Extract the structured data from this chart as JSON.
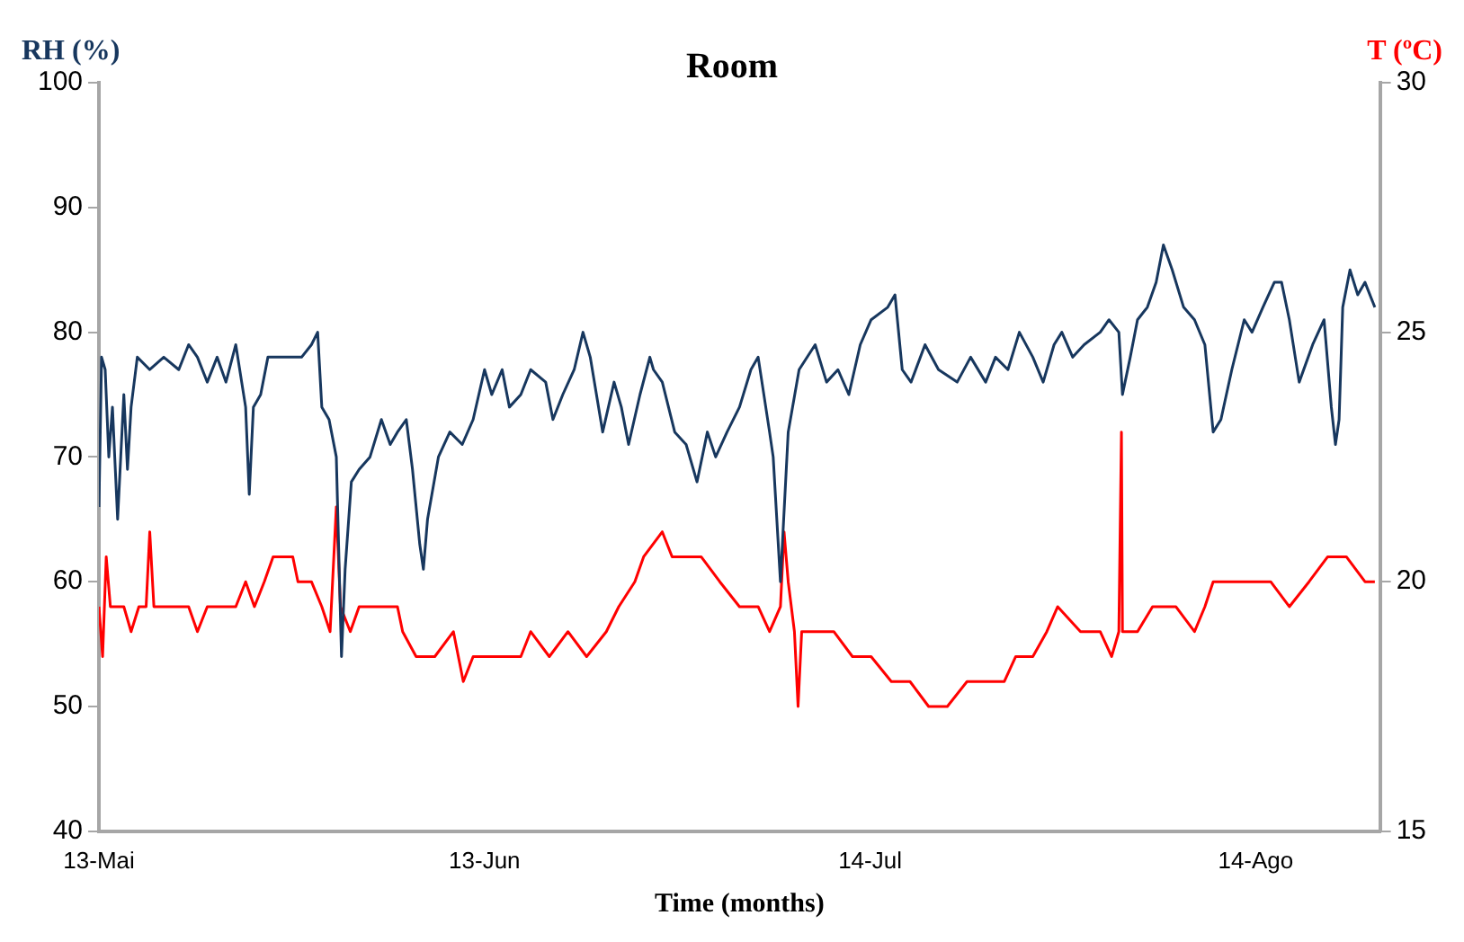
{
  "chart_data": {
    "type": "line",
    "title": "Room",
    "xlabel": "Time (months)",
    "ylabel": "RH (%)",
    "y2label": "T (ºC)",
    "xlim": [
      "--05-13",
      "--08-24"
    ],
    "xticks": [
      {
        "value": "--05-13",
        "label": "13-Mai"
      },
      {
        "value": "--06-13",
        "label": "13-Jun"
      },
      {
        "value": "--07-14",
        "label": "14-Jul"
      },
      {
        "value": "--08-14",
        "label": "14-Ago"
      }
    ],
    "ylim": [
      40,
      100
    ],
    "yticks": [
      40,
      50,
      60,
      70,
      80,
      90,
      100
    ],
    "y2lim": [
      15,
      30
    ],
    "y2ticks": [
      15,
      20,
      25,
      30
    ],
    "grid": false,
    "legend": false,
    "marker": "none",
    "line_style": "solid",
    "series": [
      {
        "color": "#17375e",
        "x": [
          "--05-13T00:00",
          "--05-13T05:00",
          "--05-13T12:00",
          "--05-13T19:00",
          "--05-14T02:00",
          "--05-14T12:00",
          "--05-15T00:00",
          "--05-15T07:00",
          "--05-15T14:00",
          "--05-16T02:00",
          "--05-17T02:00",
          "--05-18T05:00",
          "--05-19T10:00",
          "--05-20T05:00",
          "--05-20T22:00",
          "--05-21T17:00",
          "--05-22T12:00",
          "--05-23T05:00",
          "--05-24T00:00",
          "--05-24T19:00",
          "--05-25T02:00",
          "--05-25T10:00",
          "--05-26T00:00",
          "--05-26T14:00",
          "--05-27T19:00",
          "--05-28T14:00",
          "--05-29T07:00",
          "--05-30T02:00",
          "--05-30T14:00",
          "--05-30T22:00",
          "--05-31T12:00",
          "--06-01T02:00",
          "--06-01T12:00",
          "--06-01T19:00",
          "--06-02T07:00",
          "--06-02T22:00",
          "--06-03T19:00",
          "--06-04T17:00",
          "--06-05T10:00",
          "--06-06T00:00",
          "--06-06T17:00",
          "--06-07T05:00",
          "--06-07T19:00",
          "--06-08T02:00",
          "--06-08T10:00",
          "--06-09T07:00",
          "--06-10T05:00",
          "--06-11T05:00",
          "--06-12T02:00",
          "--06-13T00:00",
          "--06-13T14:00",
          "--06-14T10:00",
          "--06-15T00:00",
          "--06-15T22:00",
          "--06-16T17:00",
          "--06-17T22:00",
          "--06-18T12:00",
          "--06-19T07:00",
          "--06-20T05:00",
          "--06-20T22:00",
          "--06-21T12:00",
          "--06-22T12:00",
          "--06-23T10:00",
          "--06-24T00:00",
          "--06-24T14:00",
          "--06-25T12:00",
          "--06-26T07:00",
          "--06-26T14:00",
          "--06-27T07:00",
          "--06-28T07:00",
          "--06-29T05:00",
          "--06-30T02:00",
          "--06-30T22:00",
          "--07-01T14:00",
          "--07-02T12:00",
          "--07-03T12:00",
          "--07-04T10:00",
          "--07-05T00:00",
          "--07-05T22:00",
          "--07-06T05:00",
          "--07-06T19:00",
          "--07-07T10:00",
          "--07-08T07:00",
          "--07-09T14:00",
          "--07-10T12:00",
          "--07-11T10:00",
          "--07-12T07:00",
          "--07-13T05:00",
          "--07-14T02:00",
          "--07-15T10:00",
          "--07-16T00:00",
          "--07-16T14:00",
          "--07-17T07:00",
          "--07-18T10:00",
          "--07-19T12:00",
          "--07-21T00:00",
          "--07-22T02:00",
          "--07-23T07:00",
          "--07-24T02:00",
          "--07-25T02:00",
          "--07-26T00:00",
          "--07-27T02:00",
          "--07-27T22:00",
          "--07-28T19:00",
          "--07-29T10:00",
          "--07-30T07:00",
          "--07-31T05:00",
          "--08-01T12:00",
          "--08-02T05:00",
          "--08-03T00:00",
          "--08-03T07:00",
          "--08-03T22:00",
          "--08-04T12:00",
          "--08-05T07:00",
          "--08-06T00:00",
          "--08-06T14:00",
          "--08-07T07:00",
          "--08-08T05:00",
          "--08-09T02:00",
          "--08-09T22:00",
          "--08-10T14:00",
          "--08-11T05:00",
          "--08-12T02:00",
          "--08-13T02:00",
          "--08-13T17:00",
          "--08-14T14:00",
          "--08-15T12:00",
          "--08-16T02:00",
          "--08-16T17:00",
          "--08-17T12:00",
          "--08-18T14:00",
          "--08-19T12:00",
          "--08-20T02:00",
          "--08-20T10:00",
          "--08-20T17:00",
          "--08-21T00:00",
          "--08-21T14:00",
          "--08-22T05:00",
          "--08-22T19:00",
          "--08-23T14:00"
        ],
        "values": [
          66,
          78,
          77,
          70,
          74,
          65,
          75,
          69,
          74,
          78,
          77,
          78,
          77,
          79,
          78,
          76,
          78,
          76,
          79,
          74,
          67,
          74,
          75,
          78,
          78,
          78,
          78,
          79,
          80,
          74,
          73,
          70,
          54,
          61,
          68,
          69,
          70,
          73,
          71,
          72,
          73,
          69,
          63,
          61,
          65,
          70,
          72,
          71,
          73,
          77,
          75,
          77,
          74,
          75,
          77,
          76,
          73,
          75,
          77,
          80,
          78,
          72,
          76,
          74,
          71,
          75,
          78,
          77,
          76,
          72,
          71,
          68,
          72,
          70,
          72,
          74,
          77,
          78,
          72,
          70,
          60,
          72,
          77,
          79,
          76,
          77,
          75,
          79,
          81,
          82,
          83,
          77,
          76,
          79,
          77,
          76,
          78,
          76,
          78,
          77,
          80,
          78,
          76,
          79,
          80,
          78,
          79,
          80,
          81,
          80,
          75,
          78,
          81,
          82,
          84,
          87,
          85,
          82,
          81,
          79,
          72,
          73,
          77,
          81,
          80,
          82,
          84,
          84,
          81,
          76,
          79,
          81,
          74,
          71,
          73,
          82,
          85,
          83,
          84,
          82
        ]
      },
      {
        "color": "#ff0000",
        "axis": "y2",
        "x": [
          "--05-13T00:00",
          "--05-13T07:00",
          "--05-13T14:00",
          "--05-13T22:00",
          "--05-14T05:00",
          "--05-15T00:00",
          "--05-15T14:00",
          "--05-16T05:00",
          "--05-16T19:00",
          "--05-17T02:00",
          "--05-17T10:00",
          "--05-18T14:00",
          "--05-20T05:00",
          "--05-20T22:00",
          "--05-21T17:00",
          "--05-24T00:00",
          "--05-24T19:00",
          "--05-25T12:00",
          "--05-26T07:00",
          "--05-27T00:00",
          "--05-28T14:00",
          "--05-29T00:00",
          "--05-30T02:00",
          "--05-30T22:00",
          "--05-31T14:00",
          "--06-01T02:00",
          "--06-01T10:00",
          "--06-02T05:00",
          "--06-02T22:00",
          "--06-04T12:00",
          "--06-06T00:00",
          "--06-06T10:00",
          "--06-07T12:00",
          "--06-09T00:00",
          "--06-10T12:00",
          "--06-11T07:00",
          "--06-12T02:00",
          "--06-13T14:00",
          "--06-15T22:00",
          "--06-16T17:00",
          "--06-18T05:00",
          "--06-19T17:00",
          "--06-21T05:00",
          "--06-22T19:00",
          "--06-23T19:00",
          "--06-25T02:00",
          "--06-25T19:00",
          "--06-27T07:00",
          "--06-28T02:00",
          "--06-28T22:00",
          "--06-30T10:00",
          "--07-01T22:00",
          "--07-03T12:00",
          "--07-05T00:00",
          "--07-05T22:00",
          "--07-06T19:00",
          "--07-07T02:00",
          "--07-07T10:00",
          "--07-07T22:00",
          "--07-08T05:00",
          "--07-08T12:00",
          "--07-09T14:00",
          "--07-11T02:00",
          "--07-12T14:00",
          "--07-14T02:00",
          "--07-15T17:00",
          "--07-17T05:00",
          "--07-18T17:00",
          "--07-20T05:00",
          "--07-21T19:00",
          "--07-23T07:00",
          "--07-24T19:00",
          "--07-25T17:00",
          "--07-27T02:00",
          "--07-28T05:00",
          "--07-29T02:00",
          "--07-30T22:00",
          "--08-01T12:00",
          "--08-02T10:00",
          "--08-03T00:00",
          "--08-03T05:00",
          "--08-03T07:00",
          "--08-04T12:00",
          "--08-05T17:00",
          "--08-07T14:00",
          "--08-09T02:00",
          "--08-09T22:00",
          "--08-10T14:00",
          "--08-12T02:00",
          "--08-13T17:00",
          "--08-15T05:00",
          "--08-16T17:00",
          "--08-18T07:00",
          "--08-19T19:00",
          "--08-21T07:00",
          "--08-22T19:00",
          "--08-23T14:00"
        ],
        "values": [
          19.5,
          18.5,
          20.5,
          19.5,
          19.5,
          19.5,
          19,
          19.5,
          19.5,
          21,
          19.5,
          19.5,
          19.5,
          19,
          19.5,
          19.5,
          20,
          19.5,
          20,
          20.5,
          20.5,
          20,
          20,
          19.5,
          19,
          21.5,
          19.5,
          19,
          19.5,
          19.5,
          19.5,
          19,
          18.5,
          18.5,
          19,
          18,
          18.5,
          18.5,
          18.5,
          19,
          18.5,
          19,
          18.5,
          19,
          19.5,
          20,
          20.5,
          21,
          20.5,
          20.5,
          20.5,
          20,
          19.5,
          19.5,
          19,
          19.5,
          21,
          20,
          19,
          17.5,
          19,
          19,
          19,
          18.5,
          18.5,
          18,
          18,
          17.5,
          17.5,
          18,
          18,
          18,
          18.5,
          18.5,
          19,
          19.5,
          19,
          19,
          18.5,
          19,
          23,
          19,
          19,
          19.5,
          19.5,
          19,
          19.5,
          20,
          20,
          20,
          20,
          19.5,
          20,
          20.5,
          20.5,
          20,
          20
        ]
      }
    ]
  }
}
